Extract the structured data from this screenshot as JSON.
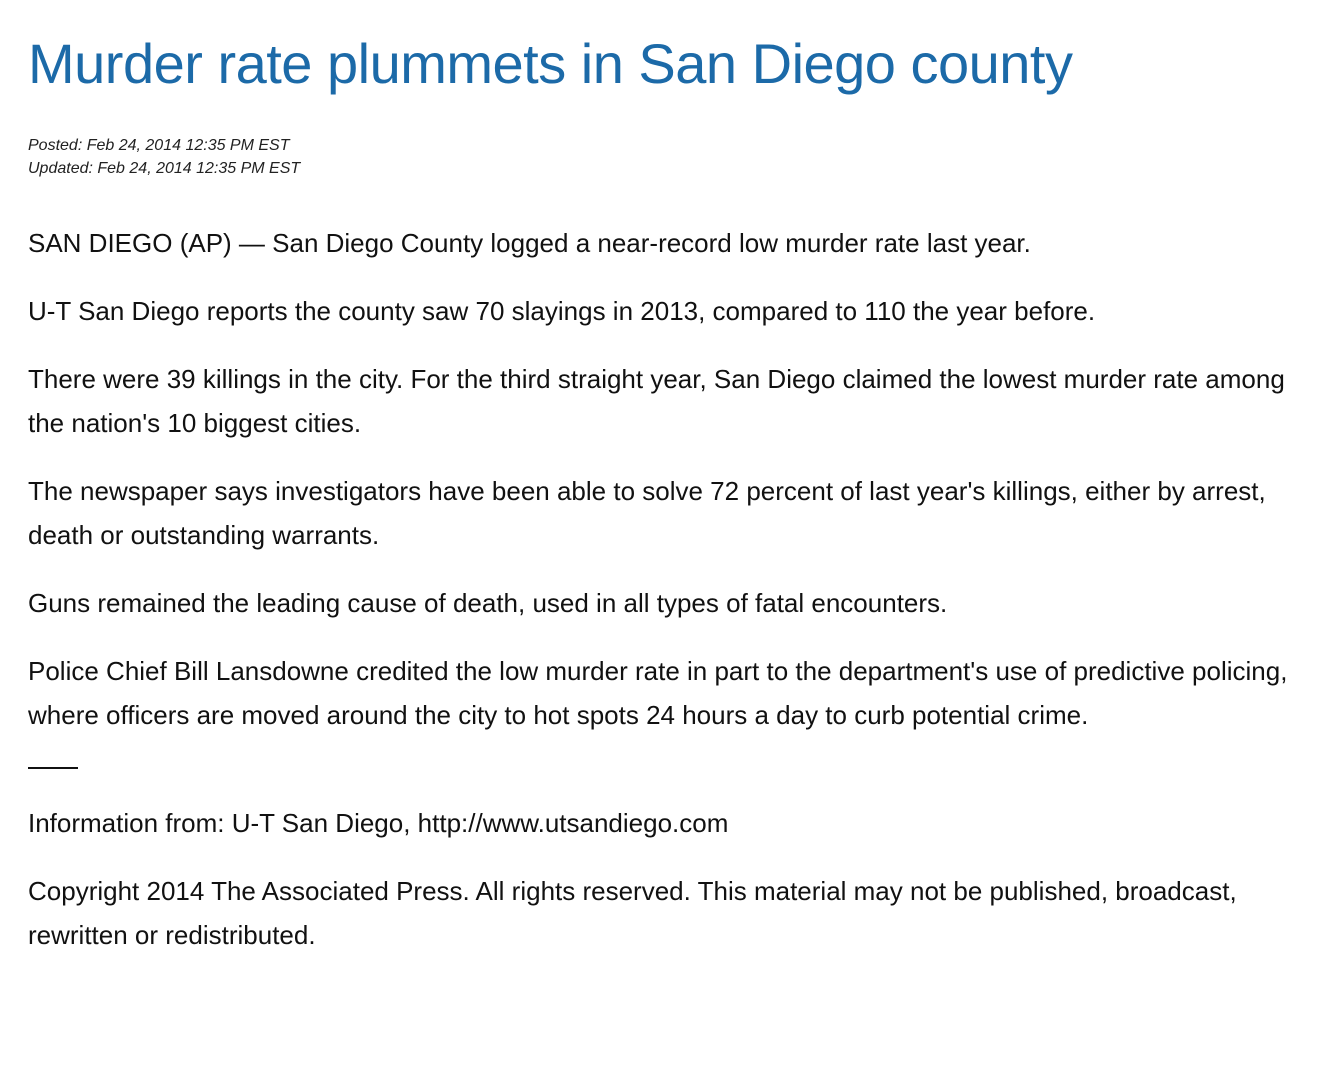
{
  "article": {
    "headline": "Murder rate plummets in San Diego county",
    "posted": "Posted: Feb 24, 2014 12:35 PM EST",
    "updated": "Updated: Feb 24, 2014 12:35 PM EST",
    "paragraphs": [
      "SAN DIEGO (AP) — San Diego County logged a near-record low murder rate last year.",
      "U-T San Diego reports the county saw 70 slayings in 2013, compared to 110 the year before.",
      "There were 39 killings in the city. For the third straight year, San Diego claimed the lowest murder rate among the nation's 10 biggest cities.",
      "The newspaper says investigators have been able to solve 72 percent of last year's killings, either by arrest, death or outstanding warrants.",
      "Guns remained the leading cause of death, used in all types of fatal encounters.",
      "Police Chief Bill Lansdowne credited the low murder rate in part to the department's use of predictive policing, where officers are moved around the city to hot spots 24 hours a day to curb potential crime."
    ],
    "source": "Information from: U-T San Diego, http://www.utsandiego.com",
    "copyright": "Copyright 2014 The Associated Press. All rights reserved. This material may not be published, broadcast, rewritten or redistributed."
  },
  "colors": {
    "headline": "#1c6aa8",
    "text": "#111111"
  }
}
